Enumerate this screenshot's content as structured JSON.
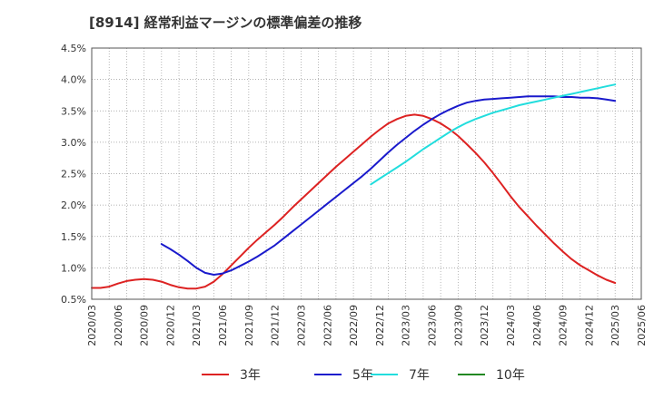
{
  "chart_data": {
    "type": "line",
    "title": "[8914]  経常利益マージンの標準偏差の推移",
    "xlabel": "",
    "ylabel": "",
    "ylim": [
      0.5,
      4.5
    ],
    "y_ticks": [
      "0.5%",
      "1.0%",
      "1.5%",
      "2.0%",
      "2.5%",
      "3.0%",
      "3.5%",
      "4.0%",
      "4.5%"
    ],
    "x_ticks": [
      "2020/03",
      "2020/06",
      "2020/09",
      "2020/12",
      "2021/03",
      "2021/06",
      "2021/09",
      "2021/12",
      "2022/03",
      "2022/06",
      "2022/09",
      "2022/12",
      "2023/03",
      "2023/06",
      "2023/09",
      "2023/12",
      "2024/03",
      "2024/06",
      "2024/09",
      "2024/12",
      "2025/03",
      "2025/06"
    ],
    "grid": true,
    "legend_position": "bottom",
    "series": [
      {
        "name": "3年",
        "color": "#dd2222",
        "x": [
          "2020/03",
          "2020/04",
          "2020/05",
          "2020/06",
          "2020/07",
          "2020/08",
          "2020/09",
          "2020/10",
          "2020/11",
          "2020/12",
          "2021/01",
          "2021/02",
          "2021/03",
          "2021/04",
          "2021/05",
          "2021/06",
          "2021/07",
          "2021/08",
          "2021/09",
          "2021/10",
          "2021/11",
          "2021/12",
          "2022/01",
          "2022/02",
          "2022/03",
          "2022/04",
          "2022/05",
          "2022/06",
          "2022/07",
          "2022/08",
          "2022/09",
          "2022/10",
          "2022/11",
          "2022/12",
          "2023/01",
          "2023/02",
          "2023/03",
          "2023/04",
          "2023/05",
          "2023/06",
          "2023/07",
          "2023/08",
          "2023/09",
          "2023/10",
          "2023/11",
          "2023/12",
          "2024/01",
          "2024/02",
          "2024/03",
          "2024/04",
          "2024/05",
          "2024/06",
          "2024/07",
          "2024/08",
          "2024/09",
          "2024/10",
          "2024/11",
          "2024/12",
          "2025/01",
          "2025/02",
          "2025/03"
        ],
        "values": [
          0.68,
          0.68,
          0.7,
          0.75,
          0.79,
          0.81,
          0.82,
          0.81,
          0.78,
          0.73,
          0.69,
          0.67,
          0.67,
          0.7,
          0.78,
          0.9,
          1.04,
          1.18,
          1.32,
          1.45,
          1.57,
          1.69,
          1.82,
          1.96,
          2.09,
          2.22,
          2.35,
          2.48,
          2.61,
          2.73,
          2.85,
          2.97,
          3.09,
          3.2,
          3.3,
          3.37,
          3.42,
          3.44,
          3.42,
          3.37,
          3.3,
          3.21,
          3.1,
          2.97,
          2.83,
          2.68,
          2.51,
          2.33,
          2.14,
          1.97,
          1.82,
          1.67,
          1.53,
          1.39,
          1.26,
          1.14,
          1.04,
          0.96,
          0.88,
          0.81,
          0.76
        ]
      },
      {
        "name": "5年",
        "color": "#1a1acc",
        "x": [
          "2020/11",
          "2020/12",
          "2021/01",
          "2021/02",
          "2021/03",
          "2021/04",
          "2021/05",
          "2021/06",
          "2021/07",
          "2021/08",
          "2021/09",
          "2021/10",
          "2021/11",
          "2021/12",
          "2022/01",
          "2022/02",
          "2022/03",
          "2022/04",
          "2022/05",
          "2022/06",
          "2022/07",
          "2022/08",
          "2022/09",
          "2022/10",
          "2022/11",
          "2022/12",
          "2023/01",
          "2023/02",
          "2023/03",
          "2023/04",
          "2023/05",
          "2023/06",
          "2023/07",
          "2023/08",
          "2023/09",
          "2023/10",
          "2023/11",
          "2023/12",
          "2024/01",
          "2024/02",
          "2024/03",
          "2024/04",
          "2024/05",
          "2024/06",
          "2024/07",
          "2024/08",
          "2024/09",
          "2024/10",
          "2024/11",
          "2024/12",
          "2025/01",
          "2025/02",
          "2025/03"
        ],
        "values": [
          1.38,
          1.3,
          1.21,
          1.11,
          1.0,
          0.92,
          0.89,
          0.91,
          0.96,
          1.03,
          1.1,
          1.18,
          1.27,
          1.36,
          1.47,
          1.58,
          1.69,
          1.8,
          1.91,
          2.02,
          2.13,
          2.24,
          2.35,
          2.46,
          2.58,
          2.71,
          2.84,
          2.96,
          3.07,
          3.18,
          3.28,
          3.37,
          3.45,
          3.52,
          3.58,
          3.63,
          3.66,
          3.68,
          3.69,
          3.7,
          3.71,
          3.72,
          3.73,
          3.73,
          3.73,
          3.73,
          3.72,
          3.72,
          3.71,
          3.71,
          3.7,
          3.68,
          3.66
        ]
      },
      {
        "name": "7年",
        "color": "#22dddd",
        "x": [
          "2022/11",
          "2022/12",
          "2023/01",
          "2023/02",
          "2023/03",
          "2023/04",
          "2023/05",
          "2023/06",
          "2023/07",
          "2023/08",
          "2023/09",
          "2023/10",
          "2023/11",
          "2023/12",
          "2024/01",
          "2024/02",
          "2024/03",
          "2024/04",
          "2024/05",
          "2024/06",
          "2024/07",
          "2024/08",
          "2024/09",
          "2024/10",
          "2024/11",
          "2024/12",
          "2025/01",
          "2025/02",
          "2025/03"
        ],
        "values": [
          2.33,
          2.42,
          2.51,
          2.6,
          2.69,
          2.79,
          2.89,
          2.98,
          3.07,
          3.16,
          3.24,
          3.31,
          3.37,
          3.42,
          3.47,
          3.51,
          3.55,
          3.59,
          3.62,
          3.65,
          3.68,
          3.71,
          3.74,
          3.77,
          3.8,
          3.83,
          3.86,
          3.89,
          3.92
        ]
      },
      {
        "name": "10年",
        "color": "#228822",
        "x": [],
        "values": []
      }
    ]
  }
}
